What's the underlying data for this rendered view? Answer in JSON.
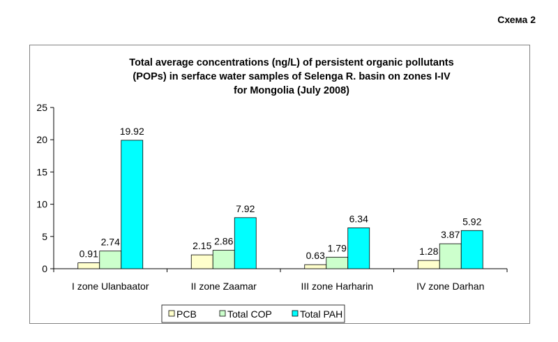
{
  "page": {
    "scheme_label": "Схема 2"
  },
  "chart_data": {
    "type": "bar",
    "title_lines": [
      "Total average concentrations (ng/L) of persistent organic pollutants",
      "(POPs) in serface water samples of Selenga R. basin on zones I-IV",
      "for Mongolia (July 2008)"
    ],
    "categories": [
      "I zone Ulanbaator",
      "II zone Zaamar",
      "III zone Harharin",
      "IV zone Darhan"
    ],
    "series": [
      {
        "name": "PCB",
        "values": [
          0.91,
          2.15,
          0.63,
          1.28
        ],
        "labels": [
          "0.91",
          "2.15",
          "0.63",
          "1.28"
        ],
        "color": "#FFFFCC"
      },
      {
        "name": "Total COP",
        "values": [
          2.74,
          2.86,
          1.79,
          3.87
        ],
        "labels": [
          "2.74",
          "2.86",
          "1.79",
          "3.87"
        ],
        "color": "#CCFFCC"
      },
      {
        "name": "Total PAH",
        "values": [
          19.92,
          7.92,
          6.34,
          5.92
        ],
        "labels": [
          "19.92",
          "7.92",
          "6.34",
          "5.92"
        ],
        "color": "#00FFFF"
      }
    ],
    "ylim": [
      0,
      25
    ],
    "yticks": [
      "0",
      "5",
      "10",
      "15",
      "20",
      "25"
    ],
    "xlabel": "",
    "ylabel": "",
    "grid": false,
    "legend_position": "bottom"
  }
}
